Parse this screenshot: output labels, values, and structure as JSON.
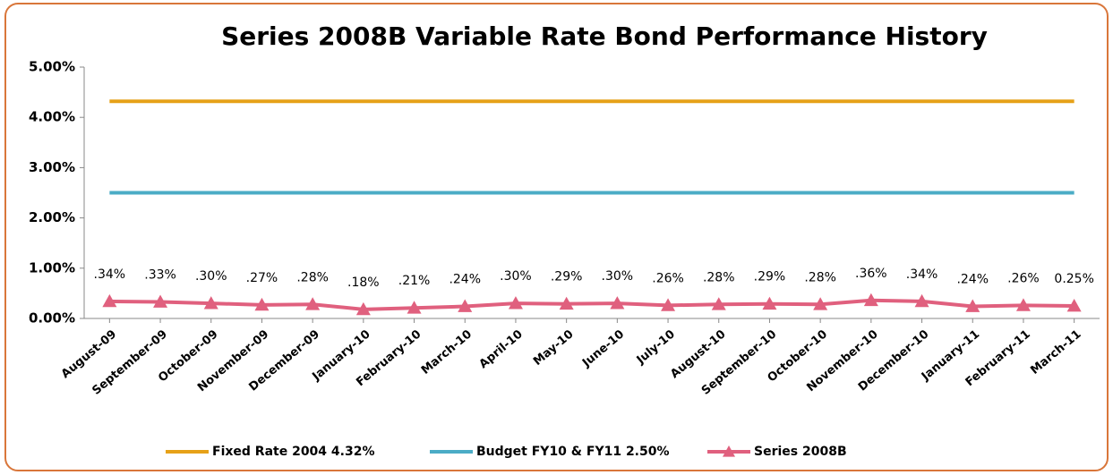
{
  "chart_data": {
    "type": "line",
    "title": "Series 2008B Variable Rate Bond Performance History",
    "categories": [
      "August-09",
      "September-09",
      "October-09",
      "November-09",
      "December-09",
      "January-10",
      "February-10",
      "March-10",
      "April-10",
      "May-10",
      "June-10",
      "July-10",
      "August-10",
      "September-10",
      "October-10",
      "November-10",
      "December-10",
      "January-11",
      "February-11",
      "March-11"
    ],
    "series": [
      {
        "name": "Fixed Rate 2004 4.32%",
        "color": "#e6a118",
        "values": [
          4.32,
          4.32,
          4.32,
          4.32,
          4.32,
          4.32,
          4.32,
          4.32,
          4.32,
          4.32,
          4.32,
          4.32,
          4.32,
          4.32,
          4.32,
          4.32,
          4.32,
          4.32,
          4.32,
          4.32
        ]
      },
      {
        "name": "Budget FY10 & FY11 2.50%",
        "color": "#4bacc6",
        "values": [
          2.5,
          2.5,
          2.5,
          2.5,
          2.5,
          2.5,
          2.5,
          2.5,
          2.5,
          2.5,
          2.5,
          2.5,
          2.5,
          2.5,
          2.5,
          2.5,
          2.5,
          2.5,
          2.5,
          2.5
        ]
      },
      {
        "name": "Series 2008B",
        "color": "#e0607e",
        "marker": "triangle",
        "values": [
          0.34,
          0.33,
          0.3,
          0.27,
          0.28,
          0.18,
          0.21,
          0.24,
          0.3,
          0.29,
          0.3,
          0.26,
          0.28,
          0.29,
          0.28,
          0.36,
          0.34,
          0.24,
          0.26,
          0.25
        ],
        "value_labels": [
          ".34%",
          ".33%",
          ".30%",
          ".27%",
          ".28%",
          ".18%",
          ".21%",
          ".24%",
          ".30%",
          ".29%",
          ".30%",
          ".26%",
          ".28%",
          ".29%",
          ".28%",
          ".36%",
          ".34%",
          ".24%",
          ".26%",
          "0.25%"
        ]
      }
    ],
    "ylim": [
      0,
      5
    ],
    "yticks": [
      {
        "value": 0,
        "label": "0.00%"
      },
      {
        "value": 1,
        "label": "1.00%"
      },
      {
        "value": 2,
        "label": "2.00%"
      },
      {
        "value": 3,
        "label": "3.00%"
      },
      {
        "value": 4,
        "label": "4.00%"
      },
      {
        "value": 5,
        "label": "5.00%"
      }
    ],
    "grid": false,
    "legend": "bottom"
  }
}
